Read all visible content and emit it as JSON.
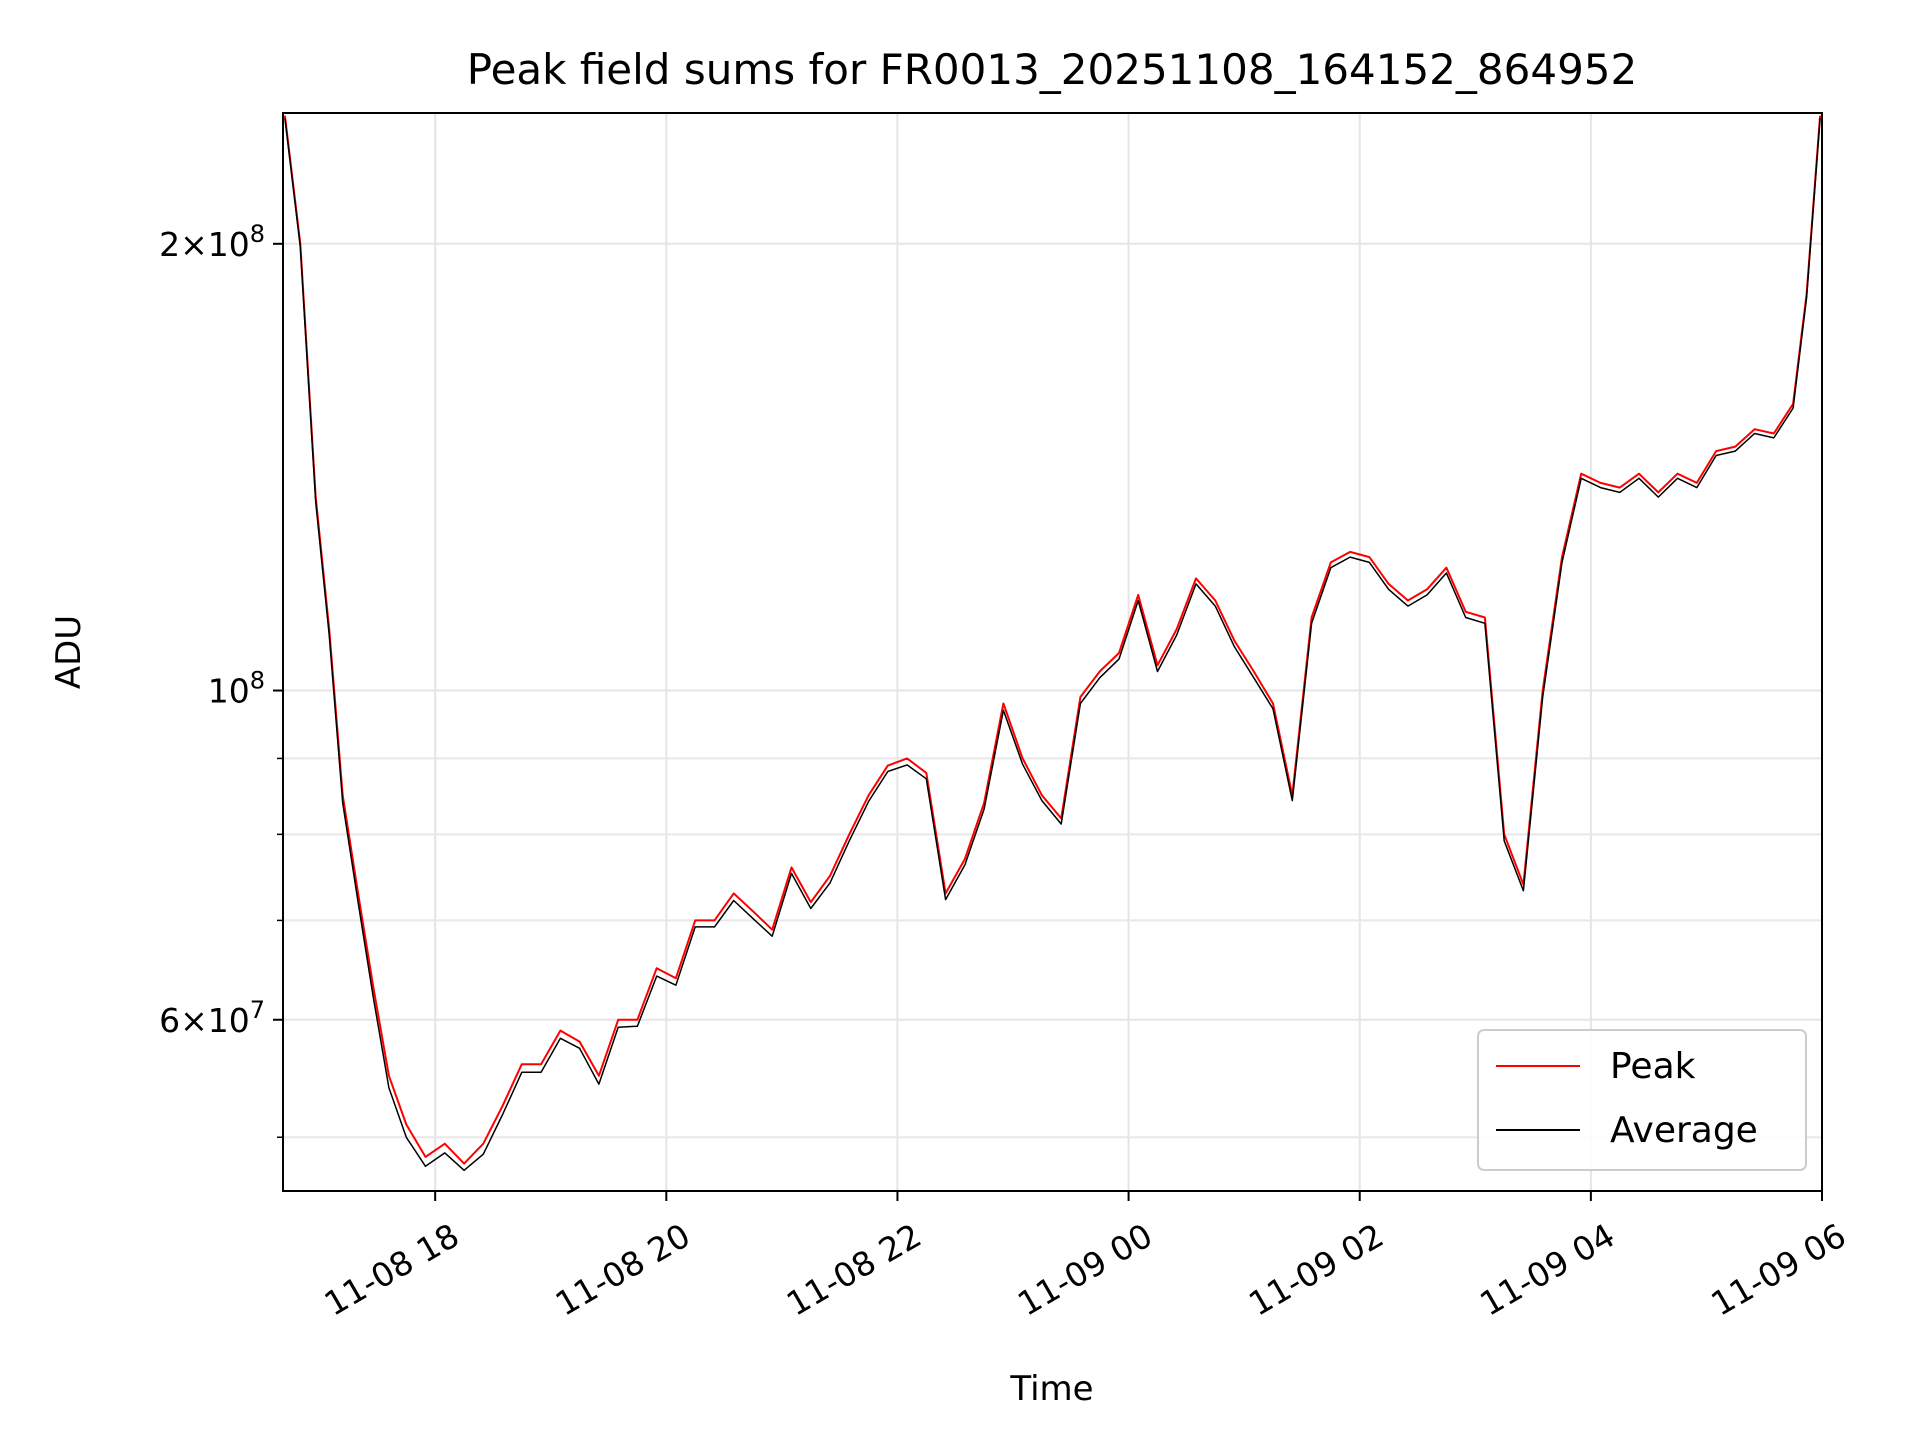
{
  "chart_data": {
    "type": "line",
    "title": "Peak field sums for FR0013_20251108_164152_864952",
    "xlabel": "Time",
    "ylabel": "ADU",
    "x_axis_type": "datetime",
    "xlim": [
      "2025-11-08 16:41",
      "2025-11-09 06:00"
    ],
    "ylim": [
      46000000,
      245000000
    ],
    "y_scale": "log",
    "grid": true,
    "legend_position": "lower-right",
    "x_ticks": [
      {
        "value": "2025-11-08 18:00",
        "label": "11-08 18"
      },
      {
        "value": "2025-11-08 20:00",
        "label": "11-08 20"
      },
      {
        "value": "2025-11-08 22:00",
        "label": "11-08 22"
      },
      {
        "value": "2025-11-09 00:00",
        "label": "11-09 00"
      },
      {
        "value": "2025-11-09 02:00",
        "label": "11-09 02"
      },
      {
        "value": "2025-11-09 04:00",
        "label": "11-09 04"
      },
      {
        "value": "2025-11-09 06:00",
        "label": "11-09 06"
      }
    ],
    "y_major_ticks": [
      {
        "value": 60000000,
        "mantissa": "6",
        "exponent": "7"
      },
      {
        "value": 100000000,
        "mantissa": "",
        "exponent": "8"
      },
      {
        "value": 200000000,
        "mantissa": "2",
        "exponent": "8"
      }
    ],
    "y_minor_ticks": [
      50000000,
      70000000,
      80000000,
      90000000
    ],
    "series": [
      {
        "name": "Peak",
        "color": "#ff0000",
        "x": [
          "2025-11-08 16:42",
          "2025-11-08 16:50",
          "2025-11-08 16:58",
          "2025-11-08 17:05",
          "2025-11-08 17:12",
          "2025-11-08 17:20",
          "2025-11-08 17:28",
          "2025-11-08 17:36",
          "2025-11-08 17:45",
          "2025-11-08 17:55",
          "2025-11-08 18:05",
          "2025-11-08 18:15",
          "2025-11-08 18:25",
          "2025-11-08 18:35",
          "2025-11-08 18:45",
          "2025-11-08 18:55",
          "2025-11-08 19:05",
          "2025-11-08 19:15",
          "2025-11-08 19:25",
          "2025-11-08 19:35",
          "2025-11-08 19:45",
          "2025-11-08 19:55",
          "2025-11-08 20:05",
          "2025-11-08 20:15",
          "2025-11-08 20:25",
          "2025-11-08 20:35",
          "2025-11-08 20:45",
          "2025-11-08 20:55",
          "2025-11-08 21:05",
          "2025-11-08 21:15",
          "2025-11-08 21:25",
          "2025-11-08 21:35",
          "2025-11-08 21:45",
          "2025-11-08 21:55",
          "2025-11-08 22:05",
          "2025-11-08 22:15",
          "2025-11-08 22:25",
          "2025-11-08 22:35",
          "2025-11-08 22:45",
          "2025-11-08 22:55",
          "2025-11-08 23:05",
          "2025-11-08 23:15",
          "2025-11-08 23:25",
          "2025-11-08 23:35",
          "2025-11-08 23:45",
          "2025-11-08 23:55",
          "2025-11-09 00:05",
          "2025-11-09 00:15",
          "2025-11-09 00:25",
          "2025-11-09 00:35",
          "2025-11-09 00:45",
          "2025-11-09 00:55",
          "2025-11-09 01:05",
          "2025-11-09 01:15",
          "2025-11-09 01:25",
          "2025-11-09 01:35",
          "2025-11-09 01:45",
          "2025-11-09 01:55",
          "2025-11-09 02:05",
          "2025-11-09 02:15",
          "2025-11-09 02:25",
          "2025-11-09 02:35",
          "2025-11-09 02:45",
          "2025-11-09 02:55",
          "2025-11-09 03:05",
          "2025-11-09 03:15",
          "2025-11-09 03:25",
          "2025-11-09 03:35",
          "2025-11-09 03:45",
          "2025-11-09 03:55",
          "2025-11-09 04:05",
          "2025-11-09 04:15",
          "2025-11-09 04:25",
          "2025-11-09 04:35",
          "2025-11-09 04:45",
          "2025-11-09 04:55",
          "2025-11-09 05:05",
          "2025-11-09 05:15",
          "2025-11-09 05:25",
          "2025-11-09 05:35",
          "2025-11-09 05:45",
          "2025-11-09 05:52",
          "2025-11-09 05:59"
        ],
        "values": [
          244000000,
          200000000,
          135000000,
          110000000,
          85000000,
          73000000,
          63000000,
          55000000,
          51000000,
          48500000,
          49500000,
          48000000,
          49500000,
          52500000,
          56000000,
          56000000,
          59000000,
          58000000,
          55000000,
          60000000,
          60000000,
          65000000,
          64000000,
          70000000,
          70000000,
          73000000,
          71000000,
          69000000,
          76000000,
          72000000,
          75000000,
          80000000,
          85000000,
          89000000,
          90000000,
          88000000,
          73000000,
          77000000,
          84000000,
          98000000,
          90000000,
          85000000,
          82000000,
          99000000,
          103000000,
          106000000,
          116000000,
          104000000,
          110000000,
          119000000,
          115000000,
          108000000,
          103000000,
          98000000,
          85000000,
          112000000,
          122000000,
          124000000,
          123000000,
          118000000,
          115000000,
          117000000,
          121000000,
          113000000,
          112000000,
          80000000,
          74000000,
          100000000,
          123000000,
          140000000,
          138000000,
          137000000,
          140000000,
          136000000,
          140000000,
          138000000,
          145000000,
          146000000,
          150000000,
          149000000,
          156000000,
          185000000,
          244000000
        ]
      },
      {
        "name": "Average",
        "color": "#000000",
        "x": [
          "2025-11-08 16:42",
          "2025-11-08 16:50",
          "2025-11-08 16:58",
          "2025-11-08 17:05",
          "2025-11-08 17:12",
          "2025-11-08 17:20",
          "2025-11-08 17:28",
          "2025-11-08 17:36",
          "2025-11-08 17:45",
          "2025-11-08 17:55",
          "2025-11-08 18:05",
          "2025-11-08 18:15",
          "2025-11-08 18:25",
          "2025-11-08 18:35",
          "2025-11-08 18:45",
          "2025-11-08 18:55",
          "2025-11-08 19:05",
          "2025-11-08 19:15",
          "2025-11-08 19:25",
          "2025-11-08 19:35",
          "2025-11-08 19:45",
          "2025-11-08 19:55",
          "2025-11-08 20:05",
          "2025-11-08 20:15",
          "2025-11-08 20:25",
          "2025-11-08 20:35",
          "2025-11-08 20:45",
          "2025-11-08 20:55",
          "2025-11-08 21:05",
          "2025-11-08 21:15",
          "2025-11-08 21:25",
          "2025-11-08 21:35",
          "2025-11-08 21:45",
          "2025-11-08 21:55",
          "2025-11-08 22:05",
          "2025-11-08 22:15",
          "2025-11-08 22:25",
          "2025-11-08 22:35",
          "2025-11-08 22:45",
          "2025-11-08 22:55",
          "2025-11-08 23:05",
          "2025-11-08 23:15",
          "2025-11-08 23:25",
          "2025-11-08 23:35",
          "2025-11-08 23:45",
          "2025-11-08 23:55",
          "2025-11-09 00:05",
          "2025-11-09 00:15",
          "2025-11-09 00:25",
          "2025-11-09 00:35",
          "2025-11-09 00:45",
          "2025-11-09 00:55",
          "2025-11-09 01:05",
          "2025-11-09 01:15",
          "2025-11-09 01:25",
          "2025-11-09 01:35",
          "2025-11-09 01:45",
          "2025-11-09 01:55",
          "2025-11-09 02:05",
          "2025-11-09 02:15",
          "2025-11-09 02:25",
          "2025-11-09 02:35",
          "2025-11-09 02:45",
          "2025-11-09 02:55",
          "2025-11-09 03:05",
          "2025-11-09 03:15",
          "2025-11-09 03:25",
          "2025-11-09 03:35",
          "2025-11-09 03:45",
          "2025-11-09 03:55",
          "2025-11-09 04:05",
          "2025-11-09 04:15",
          "2025-11-09 04:25",
          "2025-11-09 04:35",
          "2025-11-09 04:45",
          "2025-11-09 04:55",
          "2025-11-09 05:05",
          "2025-11-09 05:15",
          "2025-11-09 05:25",
          "2025-11-09 05:35",
          "2025-11-09 05:45",
          "2025-11-09 05:52",
          "2025-11-09 05:59"
        ],
        "values": [
          243000000,
          199000000,
          134000000,
          109000000,
          84000000,
          72000000,
          62000000,
          54000000,
          50000000,
          47800000,
          48800000,
          47500000,
          48700000,
          51800000,
          55300000,
          55300000,
          58300000,
          57400000,
          54300000,
          59300000,
          59400000,
          64200000,
          63300000,
          69300000,
          69300000,
          72200000,
          70200000,
          68300000,
          75300000,
          71300000,
          74200000,
          79200000,
          84200000,
          88200000,
          89100000,
          87200000,
          72300000,
          76300000,
          83200000,
          97000000,
          89200000,
          84300000,
          81300000,
          98000000,
          102000000,
          105000000,
          115000000,
          103000000,
          109000000,
          118000000,
          114000000,
          107000000,
          102000000,
          97200000,
          84300000,
          111000000,
          121000000,
          123000000,
          122000000,
          117000000,
          114000000,
          116000000,
          120000000,
          112000000,
          111000000,
          79200000,
          73300000,
          99000000,
          122000000,
          139000000,
          137000000,
          136000000,
          139000000,
          135000000,
          139000000,
          137000000,
          144000000,
          145000000,
          149000000,
          148000000,
          155000000,
          184000000,
          243000000
        ]
      }
    ]
  }
}
